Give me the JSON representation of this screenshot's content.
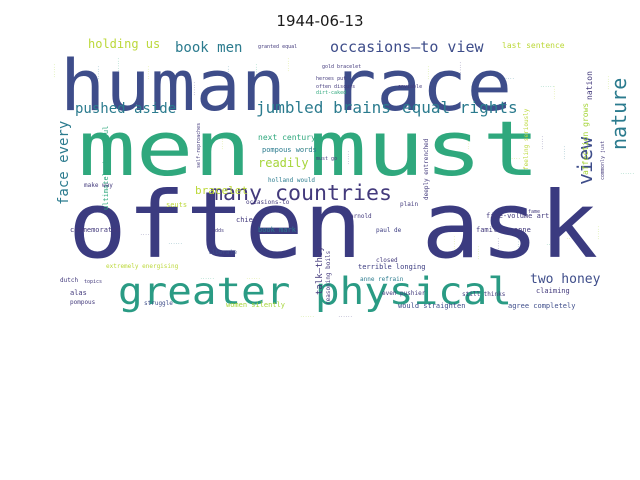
{
  "figure": {
    "title": "1944-06-13"
  },
  "chart_data": {
    "type": "wordcloud",
    "title": "1944-06-13",
    "colormap": "viridis",
    "background": "#ffffff",
    "words": [
      {
        "text": "often ask",
        "weight": 100,
        "color": "#3b3b80"
      },
      {
        "text": "men must",
        "weight": 82,
        "color": "#2fa87d"
      },
      {
        "text": "human race",
        "weight": 70,
        "color": "#3e4d8a"
      },
      {
        "text": "greater physical",
        "weight": 40,
        "color": "#2a9b84"
      },
      {
        "text": "many countries",
        "weight": 22,
        "color": "#433a7c"
      },
      {
        "text": "view",
        "weight": 22,
        "color": "#3e4d8a"
      },
      {
        "text": "nature",
        "weight": 22,
        "color": "#2b7b8e"
      },
      {
        "text": "occasions—to view",
        "weight": 16,
        "color": "#3e4d8a"
      },
      {
        "text": "jumbled brains",
        "weight": 16,
        "color": "#2b7b8e"
      },
      {
        "text": "equal rights",
        "weight": 16,
        "color": "#2b7b8e"
      },
      {
        "text": "pushed aside",
        "weight": 14,
        "color": "#2b7b8e"
      },
      {
        "text": "face every",
        "weight": 14,
        "color": "#2b7b8e"
      },
      {
        "text": "book men",
        "weight": 13,
        "color": "#2b7b8e"
      },
      {
        "text": "holding us",
        "weight": 12,
        "color": "#bcd83a"
      },
      {
        "text": "two honey",
        "weight": 12,
        "color": "#3e4d8a"
      },
      {
        "text": "readily",
        "weight": 11,
        "color": "#a6d53a"
      },
      {
        "text": "bracelet",
        "weight": 11,
        "color": "#bcd83a"
      },
      {
        "text": "talk—they",
        "weight": 9,
        "color": "#433a7c"
      },
      {
        "text": "last sentence",
        "weight": 8,
        "color": "#bcd83a"
      },
      {
        "text": "affection grows",
        "weight": 8,
        "color": "#a6d53a"
      },
      {
        "text": "nation",
        "weight": 8,
        "color": "#433a7c"
      },
      {
        "text": "ultimately beautiful",
        "weight": 8,
        "color": "#2fa87d"
      },
      {
        "text": "next century",
        "weight": 8,
        "color": "#2fa87d"
      },
      {
        "text": "pompous words",
        "weight": 7,
        "color": "#2b7b8e"
      },
      {
        "text": "book mark",
        "weight": 7,
        "color": "#2b7b8e"
      },
      {
        "text": "commemorated",
        "weight": 7,
        "color": "#433a7c"
      },
      {
        "text": "five-volume art",
        "weight": 7,
        "color": "#433a7c"
      },
      {
        "text": "familiar anne",
        "weight": 7,
        "color": "#433a7c"
      },
      {
        "text": "terrible longing",
        "weight": 7,
        "color": "#3b3b80"
      },
      {
        "text": "anne refrain",
        "weight": 6,
        "color": "#2b7b8e"
      },
      {
        "text": "even pushier",
        "weight": 6,
        "color": "#433a7c"
      },
      {
        "text": "still thinks",
        "weight": 6,
        "color": "#433a7c"
      },
      {
        "text": "would straighten",
        "weight": 7,
        "color": "#3e4d8a"
      },
      {
        "text": "agree completely",
        "weight": 7,
        "color": "#3e4d8a"
      },
      {
        "text": "claiming",
        "weight": 7,
        "color": "#433a7c"
      },
      {
        "text": "women silently",
        "weight": 7,
        "color": "#a6d53a"
      },
      {
        "text": "struggle",
        "weight": 6,
        "color": "#3e4d8a"
      },
      {
        "text": "pompous",
        "weight": 6,
        "color": "#433a7c"
      },
      {
        "text": "alas",
        "weight": 7,
        "color": "#433a7c"
      },
      {
        "text": "extremely energising",
        "weight": 6,
        "color": "#bcd83a"
      },
      {
        "text": "liberate",
        "weight": 6,
        "color": "#3e4d8a"
      },
      {
        "text": "dutch",
        "weight": 6,
        "color": "#433a7c"
      },
      {
        "text": "chief",
        "weight": 7,
        "color": "#433a7c"
      },
      {
        "text": "make way",
        "weight": 6,
        "color": "#433a7c"
      },
      {
        "text": "seuts",
        "weight": 7,
        "color": "#bcd83a"
      },
      {
        "text": "occasions-to",
        "weight": 6,
        "color": "#433a7c"
      },
      {
        "text": "holland would",
        "weight": 6,
        "color": "#2b7b8e"
      },
      {
        "text": "gold bracelet",
        "weight": 5,
        "color": "#433a7c"
      },
      {
        "text": "heroes put",
        "weight": 5,
        "color": "#433a7c"
      },
      {
        "text": "dirt-caked",
        "weight": 5,
        "color": "#2fa87d"
      },
      {
        "text": "often discuss",
        "weight": 5,
        "color": "#433a7c"
      },
      {
        "text": "granted equal",
        "weight": 5,
        "color": "#433a7c"
      },
      {
        "text": "enviable",
        "weight": 5,
        "color": "#433a7c"
      },
      {
        "text": "reasoning boils",
        "weight": 6,
        "color": "#433a7c"
      },
      {
        "text": "arnold",
        "weight": 6,
        "color": "#433a7c"
      },
      {
        "text": "paul de",
        "weight": 6,
        "color": "#3b3b80"
      },
      {
        "text": "plain",
        "weight": 6,
        "color": "#433a7c"
      },
      {
        "text": "closed",
        "weight": 6,
        "color": "#433a7c"
      },
      {
        "text": "adds",
        "weight": 5,
        "color": "#433a7c"
      },
      {
        "text": "self-reproaches",
        "weight": 5,
        "color": "#433a7c"
      },
      {
        "text": "deeply entrenched",
        "weight": 6,
        "color": "#433a7c"
      },
      {
        "text": "must go",
        "weight": 5,
        "color": "#433a7c"
      },
      {
        "text": "fame",
        "weight": 5,
        "color": "#433a7c"
      },
      {
        "text": "feeling seriously",
        "weight": 6,
        "color": "#bcd83a"
      },
      {
        "text": "commonly just",
        "weight": 5,
        "color": "#433a7c"
      },
      {
        "text": "topics",
        "weight": 5,
        "color": "#433a7c"
      }
    ]
  }
}
